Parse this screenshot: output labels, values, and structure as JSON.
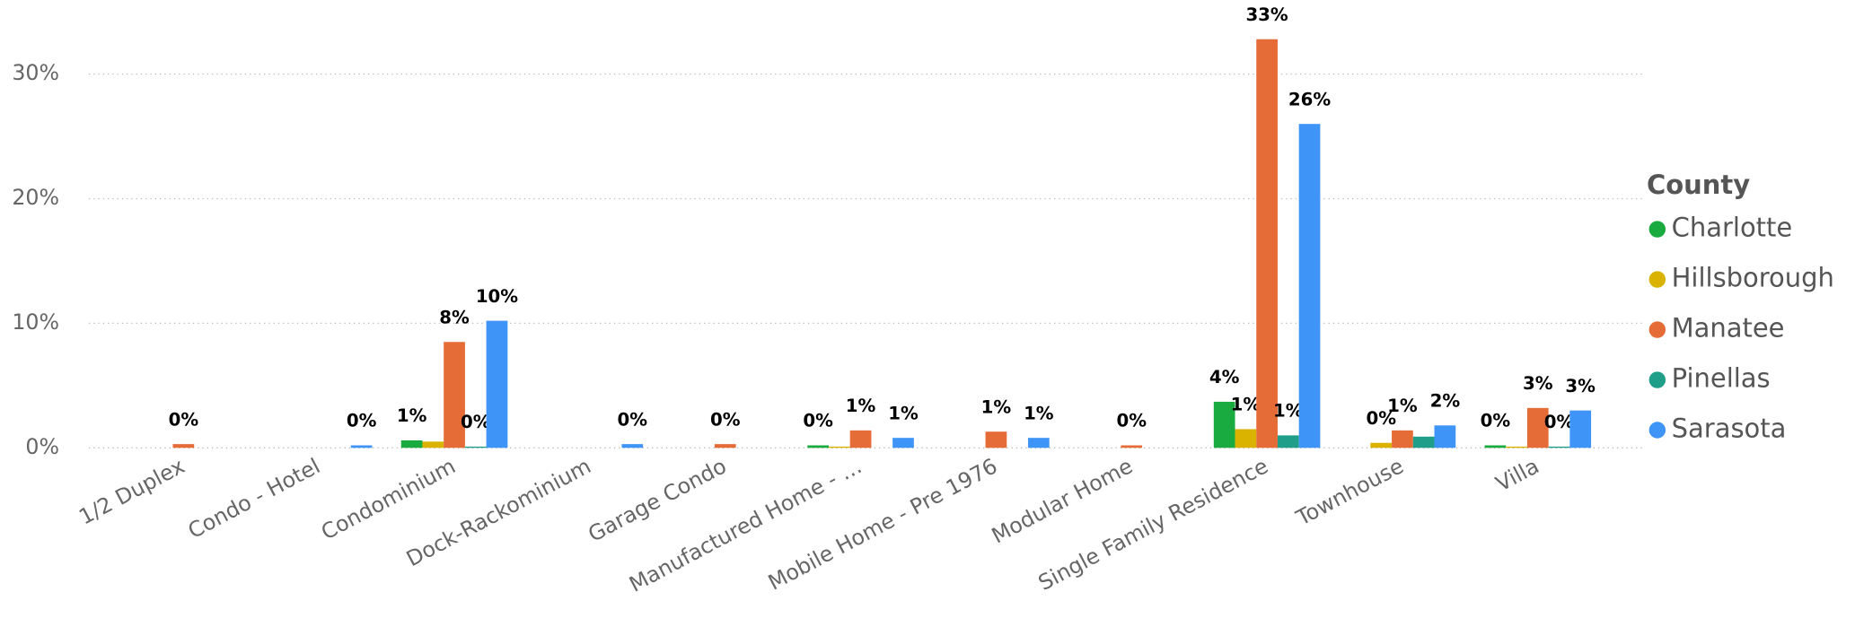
{
  "chart_data": {
    "type": "bar",
    "categories": [
      "1/2 Duplex",
      "Condo - Hotel",
      "Condominium",
      "Dock-Rackominium",
      "Garage Condo",
      "Manufactured Home - …",
      "Mobile Home - Pre 1976",
      "Modular Home",
      "Single Family Residence",
      "Townhouse",
      "Villa"
    ],
    "legend_title": "County",
    "legend": "right",
    "grid": true,
    "ylim": [
      0,
      35
    ],
    "yticks": [
      {
        "value": 0,
        "label": "0%"
      },
      {
        "value": 10,
        "label": "10%"
      },
      {
        "value": 20,
        "label": "20%"
      },
      {
        "value": 30,
        "label": "30%"
      }
    ],
    "series": [
      {
        "name": "Charlotte",
        "color": "#1aab40",
        "values": [
          null,
          null,
          0.6,
          null,
          null,
          0.2,
          null,
          null,
          3.7,
          null,
          0.2
        ],
        "value_labels": [
          null,
          null,
          "1%",
          null,
          null,
          "0%",
          null,
          null,
          "4%",
          null,
          "0%"
        ]
      },
      {
        "name": "Hillsborough",
        "color": "#d9b300",
        "values": [
          null,
          null,
          0.5,
          null,
          null,
          0.1,
          null,
          null,
          1.5,
          0.4,
          0.1
        ],
        "value_labels": [
          null,
          null,
          null,
          null,
          null,
          null,
          null,
          null,
          "1%",
          "0%",
          null
        ]
      },
      {
        "name": "Manatee",
        "color": "#e66c37",
        "values": [
          0.3,
          null,
          8.5,
          null,
          0.3,
          1.4,
          1.3,
          0.2,
          32.8,
          1.4,
          3.2
        ],
        "value_labels": [
          "0%",
          null,
          "8%",
          null,
          "0%",
          "1%",
          "1%",
          "0%",
          "33%",
          "1%",
          "3%"
        ]
      },
      {
        "name": "Pinellas",
        "color": "#1f9e89",
        "values": [
          null,
          null,
          0.1,
          null,
          null,
          null,
          null,
          null,
          1.0,
          0.9,
          0.1
        ],
        "value_labels": [
          null,
          null,
          "0%",
          null,
          null,
          null,
          null,
          null,
          "1%",
          null,
          "0%"
        ]
      },
      {
        "name": "Sarasota",
        "color": "#3f94f8",
        "values": [
          null,
          0.2,
          10.2,
          0.3,
          null,
          0.8,
          0.8,
          null,
          26.0,
          1.8,
          3.0
        ],
        "value_labels": [
          null,
          "0%",
          "10%",
          "0%",
          null,
          "1%",
          "1%",
          null,
          "26%",
          "2%",
          "3%"
        ]
      }
    ]
  }
}
